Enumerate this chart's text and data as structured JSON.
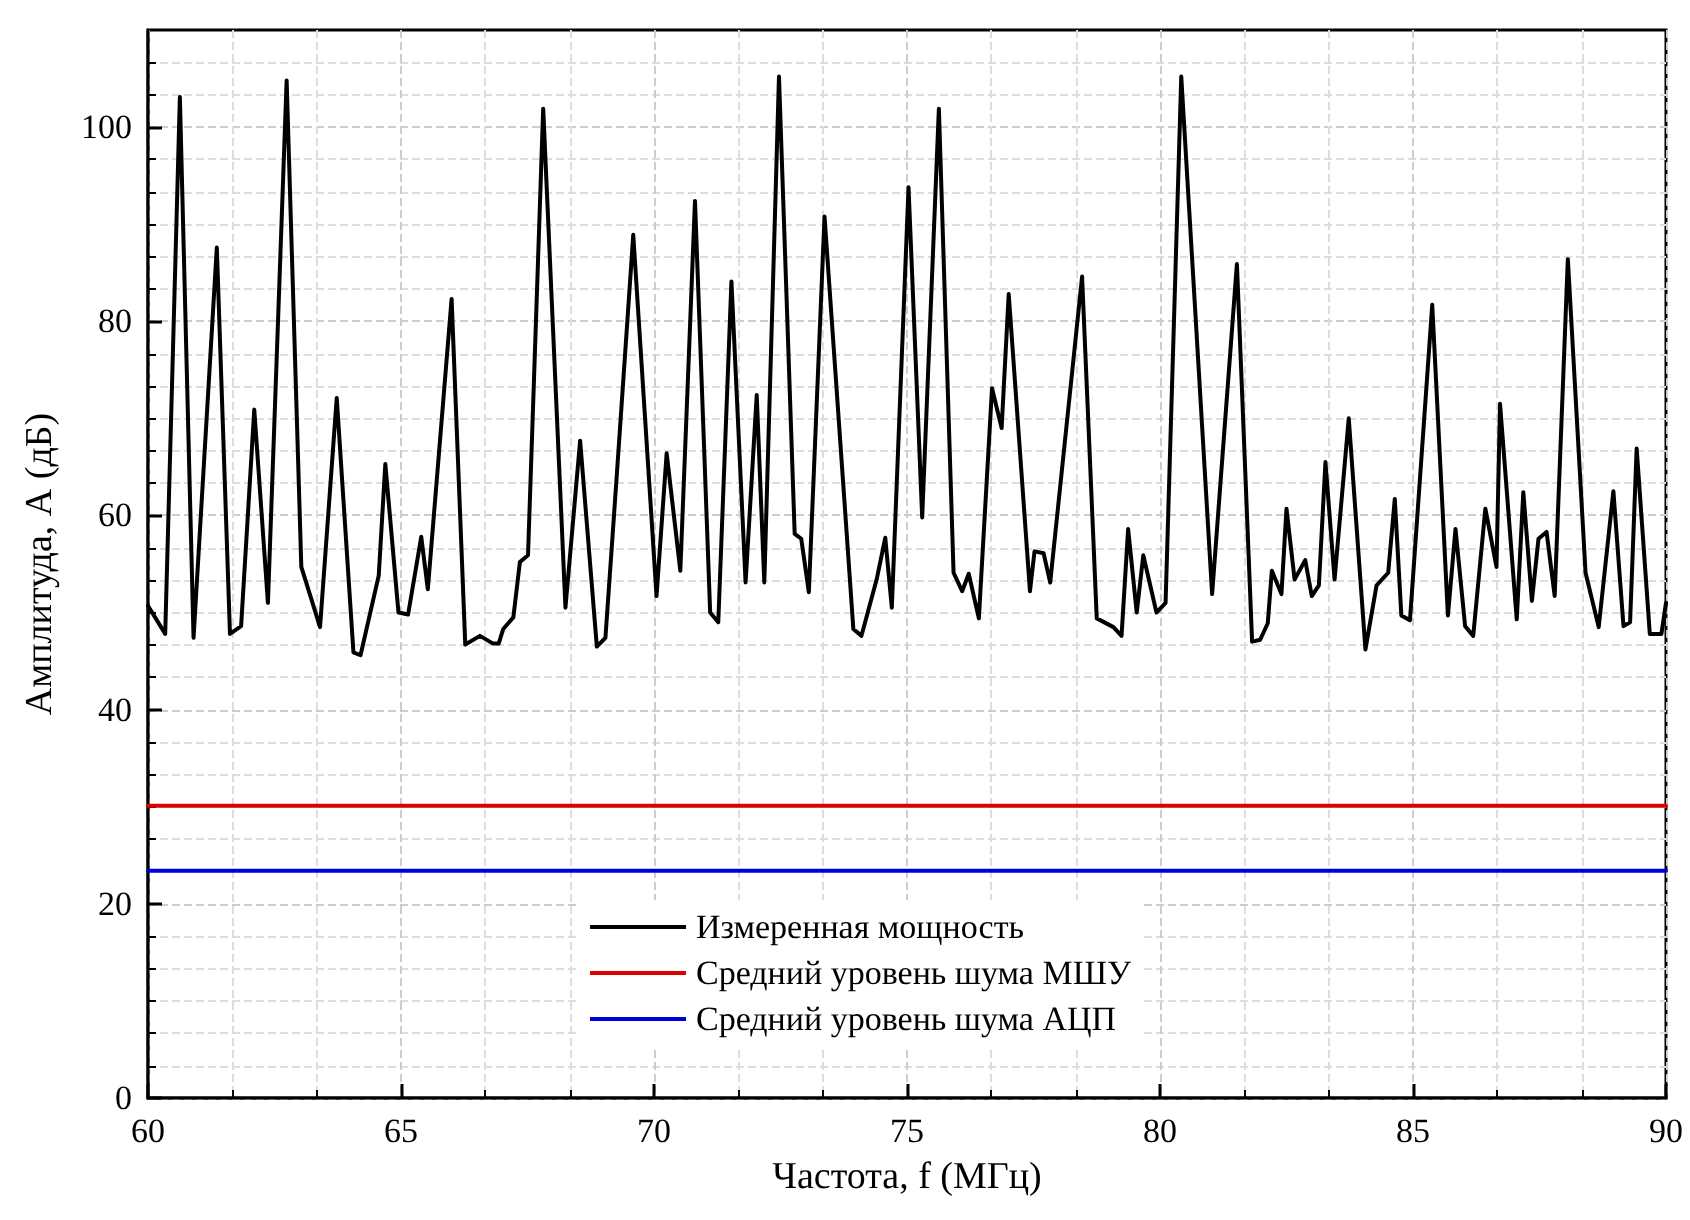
{
  "chart_data": {
    "type": "line",
    "xlabel": "Частота, f (МГц)",
    "ylabel": "Амплитуда, А (дБ)",
    "xlim": [
      60,
      90
    ],
    "xticks": [
      60,
      65,
      70,
      75,
      80,
      85,
      90
    ],
    "ylim": [
      0,
      110
    ],
    "yticks": [
      0,
      20,
      40,
      60,
      80,
      100
    ],
    "grid": true,
    "legend": "bottom",
    "marker": "none",
    "line_style": "solid",
    "series": [
      {
        "name": "Измеренная мощность",
        "color": "#000000",
        "x": [
          60.0,
          60.34,
          60.63,
          60.9,
          61.36,
          61.62,
          61.84,
          62.1,
          62.37,
          62.74,
          63.03,
          63.4,
          63.73,
          64.06,
          64.2,
          64.56,
          64.69,
          64.95,
          65.14,
          65.4,
          65.53,
          66.0,
          66.27,
          66.56,
          66.82,
          66.93,
          67.02,
          67.22,
          67.35,
          67.51,
          67.81,
          68.25,
          68.54,
          68.87,
          69.04,
          69.26,
          69.59,
          70.05,
          70.25,
          70.52,
          70.81,
          71.11,
          71.27,
          71.53,
          71.81,
          72.03,
          72.18,
          72.47,
          72.78,
          72.91,
          73.06,
          73.37,
          73.94,
          74.1,
          74.4,
          74.57,
          74.7,
          75.03,
          75.3,
          75.63,
          75.92,
          76.09,
          76.22,
          76.42,
          76.68,
          76.87,
          77.01,
          77.43,
          77.52,
          77.7,
          77.83,
          78.46,
          78.75,
          79.08,
          79.24,
          79.37,
          79.54,
          79.67,
          79.93,
          80.11,
          80.42,
          81.03,
          81.52,
          81.82,
          81.98,
          82.13,
          82.21,
          82.4,
          82.5,
          82.66,
          82.87,
          83.0,
          83.14,
          83.27,
          83.45,
          83.73,
          84.06,
          84.28,
          84.51,
          84.64,
          84.77,
          84.94,
          85.38,
          85.69,
          85.84,
          86.03,
          86.19,
          86.43,
          86.65,
          86.72,
          87.05,
          87.18,
          87.35,
          87.48,
          87.64,
          87.8,
          88.06,
          88.41,
          88.67,
          88.96,
          89.16,
          89.29,
          89.42,
          89.68,
          89.91,
          90.0
        ],
        "values": [
          50.7,
          47.8,
          103.1,
          47.4,
          87.6,
          47.8,
          48.6,
          70.9,
          51.0,
          104.8,
          54.7,
          48.5,
          72.1,
          45.9,
          45.6,
          53.8,
          65.3,
          50.0,
          49.8,
          57.8,
          52.4,
          82.3,
          46.7,
          47.6,
          46.8,
          46.8,
          48.3,
          49.5,
          55.2,
          55.9,
          101.9,
          50.5,
          67.7,
          46.5,
          47.4,
          63.8,
          88.9,
          51.7,
          66.4,
          54.3,
          92.4,
          50.0,
          49.0,
          84.1,
          53.1,
          72.4,
          53.1,
          105.2,
          58.1,
          57.6,
          52.1,
          90.8,
          48.3,
          47.6,
          53.4,
          57.7,
          50.5,
          93.8,
          59.8,
          101.9,
          54.1,
          52.2,
          54.0,
          49.4,
          73.1,
          69.0,
          82.8,
          52.2,
          56.3,
          56.1,
          53.1,
          84.6,
          49.4,
          48.5,
          47.6,
          58.6,
          50.0,
          55.9,
          50.0,
          51.0,
          105.2,
          51.9,
          85.9,
          47.0,
          47.2,
          48.9,
          54.3,
          51.9,
          60.7,
          53.4,
          55.4,
          51.7,
          52.8,
          65.5,
          53.4,
          70.0,
          46.2,
          52.8,
          54.1,
          61.7,
          49.7,
          49.2,
          81.7,
          49.7,
          58.6,
          48.6,
          47.6,
          60.7,
          54.7,
          71.5,
          49.3,
          62.4,
          51.2,
          57.6,
          58.3,
          51.7,
          86.4,
          54.1,
          48.5,
          62.5,
          48.6,
          49.0,
          66.9,
          47.8,
          47.8,
          51.0
        ]
      },
      {
        "name": "Средний уровень шума МШУ",
        "color": "#dd0000",
        "x": [
          60,
          90
        ],
        "values": [
          30.1,
          30.1
        ]
      },
      {
        "name": "Средний уровень шума АЦП",
        "color": "#0000dd",
        "x": [
          60,
          90
        ],
        "values": [
          23.4,
          23.4
        ]
      }
    ]
  }
}
